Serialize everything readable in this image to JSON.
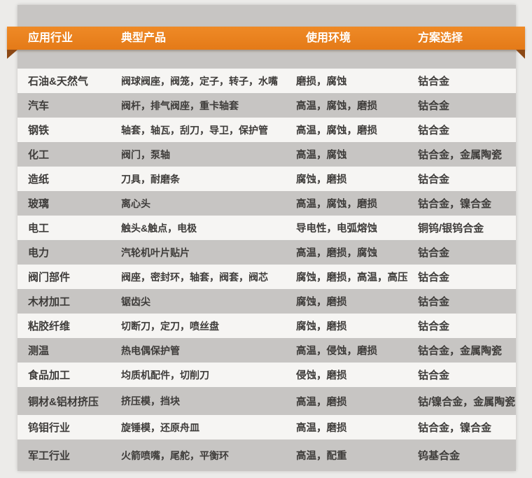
{
  "header": {
    "columns": [
      "应用行业",
      "典型产品",
      "使用环境",
      "方案选择"
    ]
  },
  "table": {
    "rows": [
      {
        "industry": "石油&天然气",
        "products": "阀球阀座，阀笼，定子，转子，水嘴",
        "environment": "磨损，腐蚀",
        "solution": "钴合金"
      },
      {
        "industry": "汽车",
        "products": "阀杆，排气阀座，重卡轴套",
        "environment": "高温，腐蚀，磨损",
        "solution": "钴合金"
      },
      {
        "industry": "钢铁",
        "products": "轴套，轴瓦，刮刀，导卫，保护管",
        "environment": "高温，腐蚀，磨损",
        "solution": "钴合金"
      },
      {
        "industry": "化工",
        "products": "阀门，泵轴",
        "environment": "高温，腐蚀",
        "solution": "钴合金，金属陶瓷"
      },
      {
        "industry": "造纸",
        "products": "刀具，耐磨条",
        "environment": "腐蚀，磨损",
        "solution": "钴合金"
      },
      {
        "industry": "玻璃",
        "products": "离心头",
        "environment": "高温，腐蚀，磨损",
        "solution": "钴合金，镍合金"
      },
      {
        "industry": "电工",
        "products": "触头&触点，电极",
        "environment": "导电性，电弧熔蚀",
        "solution": "铜钨/银钨合金"
      },
      {
        "industry": "电力",
        "products": "汽轮机叶片贴片",
        "environment": "高温，磨损，腐蚀",
        "solution": "钴合金"
      },
      {
        "industry": "阀门部件",
        "products": "阀座，密封环，轴套，阀套，阀芯",
        "environment": "腐蚀，磨损，高温，高压",
        "solution": "钴合金"
      },
      {
        "industry": "木材加工",
        "products": "锯齿尖",
        "environment": "腐蚀，磨损",
        "solution": "钴合金"
      },
      {
        "industry": "粘胶纤维",
        "products": "切断刀，定刀，喷丝盘",
        "environment": "腐蚀，磨损",
        "solution": "钴合金"
      },
      {
        "industry": "测温",
        "products": "热电偶保护管",
        "environment": "高温，侵蚀，磨损",
        "solution": "钴合金，金属陶瓷"
      },
      {
        "industry": "食品加工",
        "products": "均质机配件，切削刀",
        "environment": "侵蚀，磨损",
        "solution": "钴合金"
      },
      {
        "industry": "铜材&铝材挤压",
        "products": "挤压模，挡块",
        "environment": "高温，磨损",
        "solution": "钴/镍合金，金属陶瓷"
      },
      {
        "industry": "钨钼行业",
        "products": "旋锤模，还原舟皿",
        "environment": "高温，磨损",
        "solution": "钴合金，镍合金"
      },
      {
        "industry": "军工行业",
        "products": "火箭喷嘴，尾舵，平衡环",
        "environment": "高温，配重",
        "solution": "钨基合金"
      }
    ]
  },
  "colors": {
    "accent_orange": "#E8811E",
    "ribbon_fold_brown": "#8C4814",
    "panel_gray": "#C7C5C3",
    "row_light": "#F6F5F3",
    "page_background": "#ECEBE9",
    "header_text": "#FFFFFF",
    "body_text": "#3E3C3A"
  }
}
